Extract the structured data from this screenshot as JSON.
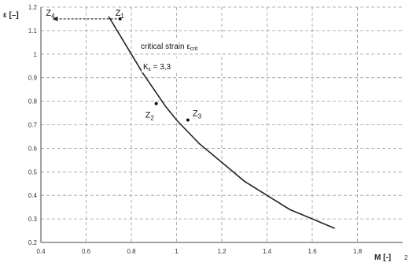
{
  "chart_data": {
    "type": "line",
    "xlabel": "M [-]",
    "ylabel": "ε [–]",
    "xlim": [
      0.4,
      2.0
    ],
    "ylim": [
      0.2,
      1.2
    ],
    "x_ticks": [
      0.4,
      0.6,
      0.8,
      1.0,
      1.2,
      1.4,
      1.6,
      1.8
    ],
    "x_tick_labels": [
      "0.4",
      "0.6",
      "0.8",
      "1",
      "1.2",
      "1.4",
      "1.6",
      "1.8"
    ],
    "x_tick_extra": "2",
    "y_ticks": [
      0.2,
      0.3,
      0.4,
      0.5,
      0.6,
      0.7,
      0.8,
      0.9,
      1.0,
      1.1,
      1.2
    ],
    "y_tick_labels": [
      "0.2",
      "0.3",
      "0.4",
      "0.5",
      "0.6",
      "0.7",
      "0.8",
      "0.9",
      "1",
      "1.1",
      "1.2"
    ],
    "grid": true,
    "series": [
      {
        "x": [
          0.7,
          0.75,
          0.8,
          0.85,
          0.9,
          0.95,
          1.0,
          1.05,
          1.1,
          1.2,
          1.3,
          1.4,
          1.5,
          1.6,
          1.7
        ],
        "y": [
          1.16,
          1.08,
          1.0,
          0.92,
          0.85,
          0.78,
          0.72,
          0.67,
          0.62,
          0.54,
          0.46,
          0.4,
          0.34,
          0.3,
          0.26
        ]
      }
    ],
    "points": [
      {
        "label": "Z",
        "sub": "1",
        "x": 0.75,
        "y": 1.15
      },
      {
        "label": "Z",
        "sub": "2",
        "x": 0.91,
        "y": 0.79
      },
      {
        "label": "Z",
        "sub": "3",
        "x": 1.05,
        "y": 0.72
      },
      {
        "label": "Z",
        "sub": "4",
        "x": 0.45,
        "y": 1.15
      }
    ],
    "arrow": {
      "from_x": 0.75,
      "to_x": 0.45,
      "y": 1.15
    },
    "annotations": {
      "critical_text": "critical strain ε",
      "critical_sub": "crit",
      "k_text_main": "K",
      "k_text_sub": "ε",
      "k_text_value": " = 3,3"
    },
    "colors": {
      "curve": "#222222",
      "grid": "#9a9a9a",
      "arrow": "#222222"
    }
  }
}
